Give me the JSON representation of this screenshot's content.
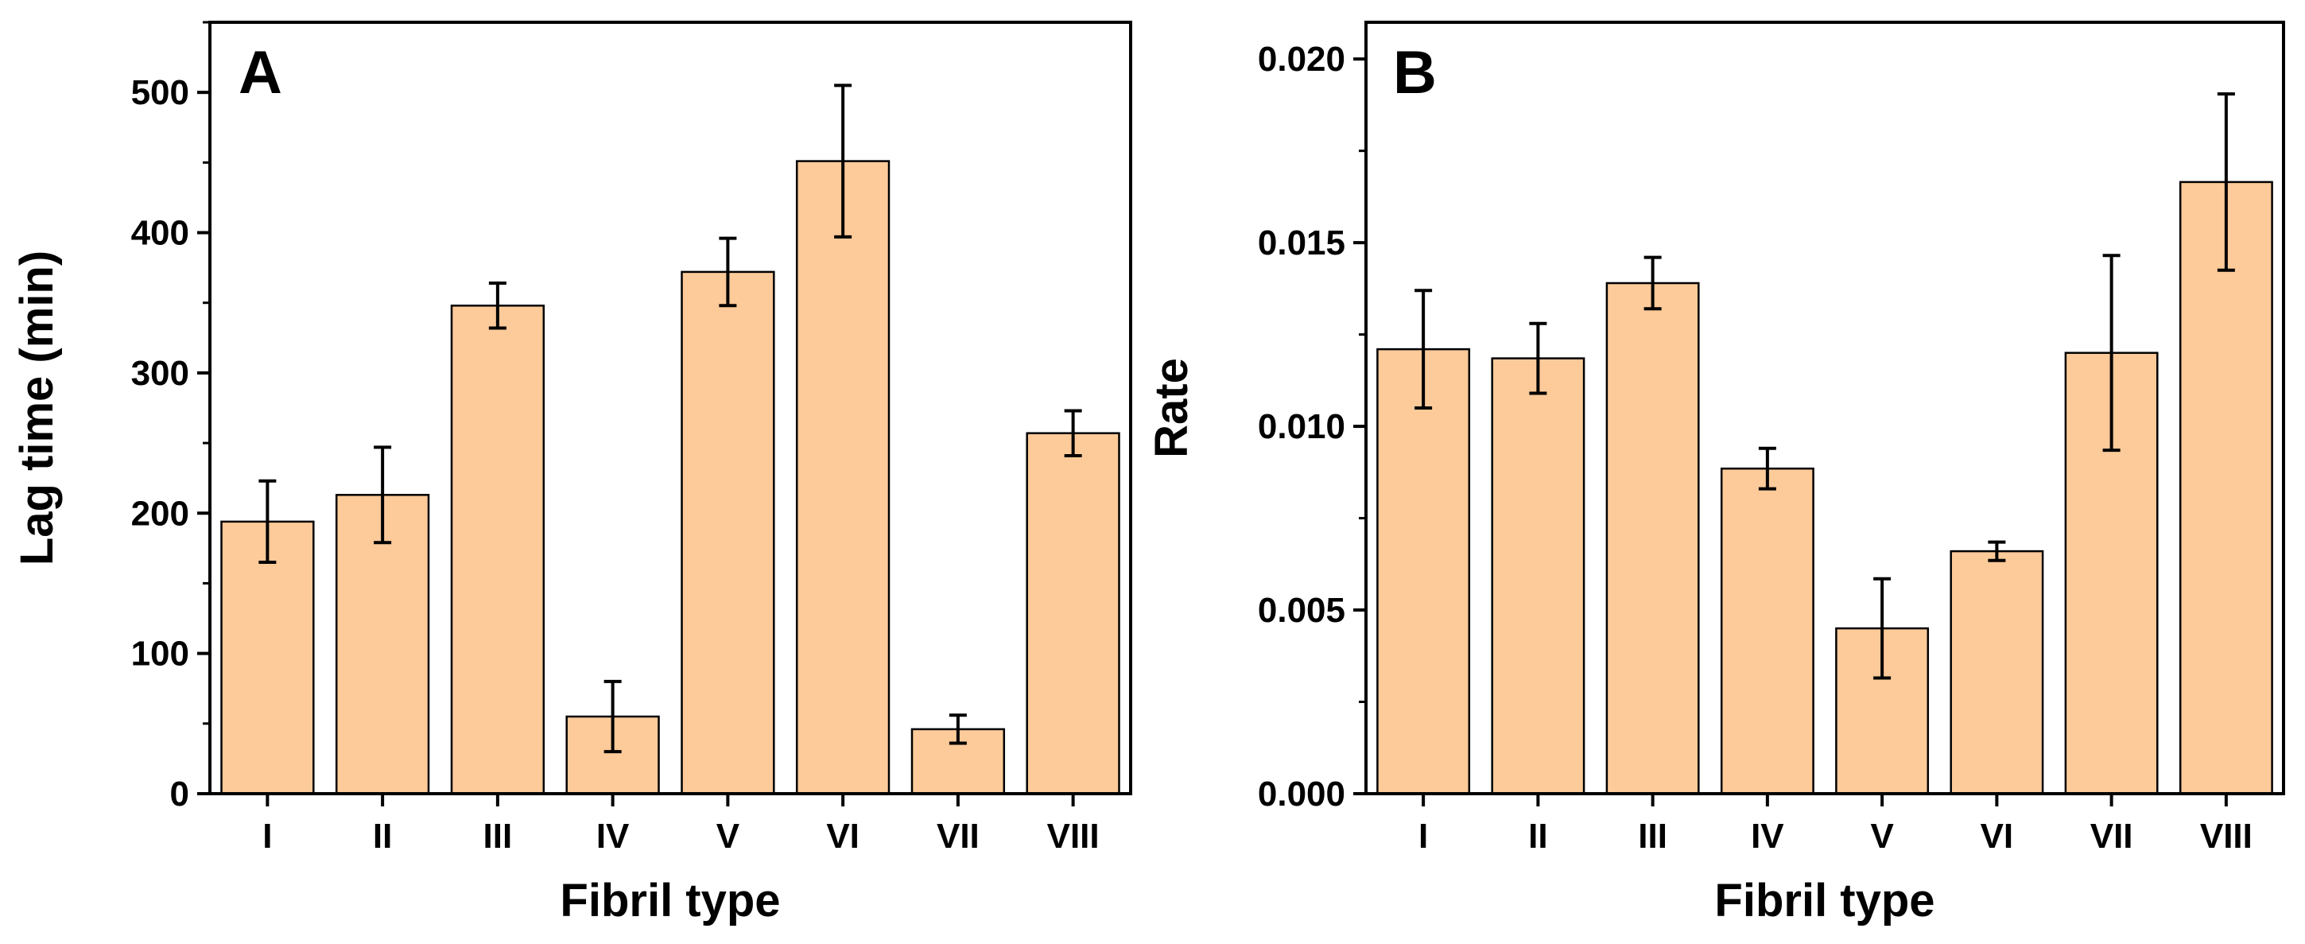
{
  "figure": {
    "bar_color": "#FDCA99",
    "bar_edge_color": "#000000",
    "axis_color": "#000000"
  },
  "chart_data": [
    {
      "type": "bar",
      "panel_label": "A",
      "categories": [
        "I",
        "II",
        "III",
        "IV",
        "V",
        "VI",
        "VII",
        "VIII"
      ],
      "values": [
        194,
        213,
        348,
        55,
        372,
        451,
        46,
        257
      ],
      "errors": [
        29,
        34,
        16,
        25,
        24,
        54,
        10,
        16
      ],
      "xlabel": "Fibril type",
      "ylabel": "Lag time (min)",
      "ylim": [
        0,
        550
      ],
      "yticks": [
        0,
        100,
        200,
        300,
        400,
        500
      ],
      "ytick_labels": [
        "0",
        "100",
        "200",
        "300",
        "400",
        "500"
      ],
      "minor_yticks": [
        50,
        150,
        250,
        350,
        450,
        550
      ]
    },
    {
      "type": "bar",
      "panel_label": "B",
      "categories": [
        "I",
        "II",
        "III",
        "IV",
        "V",
        "VI",
        "VII",
        "VIII"
      ],
      "values": [
        0.0121,
        0.01185,
        0.0139,
        0.00885,
        0.0045,
        0.0066,
        0.012,
        0.01665
      ],
      "errors": [
        0.0016,
        0.00095,
        0.0007,
        0.00055,
        0.00135,
        0.00025,
        0.00265,
        0.0024
      ],
      "xlabel": "Fibril type",
      "ylabel": "Rate",
      "ylim": [
        0,
        0.021
      ],
      "yticks": [
        0,
        0.005,
        0.01,
        0.015,
        0.02
      ],
      "ytick_labels": [
        "0.000",
        "0.005",
        "0.010",
        "0.015",
        "0.020"
      ],
      "minor_yticks": [
        0.0025,
        0.0075,
        0.0125,
        0.0175
      ]
    }
  ]
}
